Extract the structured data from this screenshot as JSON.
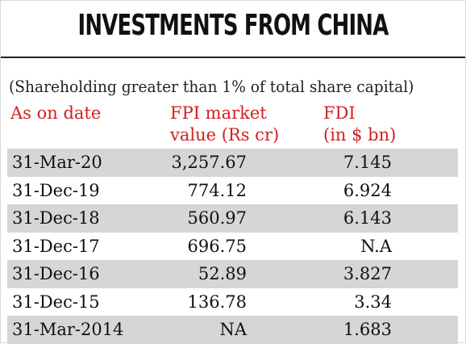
{
  "title": "INVESTMENTS FROM CHINA",
  "subtitle": "(Shareholding greater than 1% of total share capital)",
  "headers": {
    "date": "As on date",
    "fpi_line1": "FPI market",
    "fpi_line2": "value (Rs cr)",
    "fdi_line1": "FDI",
    "fdi_line2": "(in $ bn)"
  },
  "colors": {
    "header_text": "#d22020",
    "shaded_row": "#d6d6d6"
  },
  "chart_data": {
    "type": "table",
    "columns": [
      "As on date",
      "FPI market value (Rs cr)",
      "FDI (in $ bn)"
    ],
    "rows": [
      {
        "date": "31-Mar-20",
        "fpi": "3,257.67",
        "fdi": "7.145"
      },
      {
        "date": "31-Dec-19",
        "fpi": "774.12",
        "fdi": "6.924"
      },
      {
        "date": "31-Dec-18",
        "fpi": "560.97",
        "fdi": "6.143"
      },
      {
        "date": "31-Dec-17",
        "fpi": "696.75",
        "fdi": "N.A"
      },
      {
        "date": "31-Dec-16",
        "fpi": "52.89",
        "fdi": "3.827"
      },
      {
        "date": "31-Dec-15",
        "fpi": "136.78",
        "fdi": "3.34"
      },
      {
        "date": "31-Mar-2014",
        "fpi": "NA",
        "fdi": "1.683"
      }
    ]
  }
}
